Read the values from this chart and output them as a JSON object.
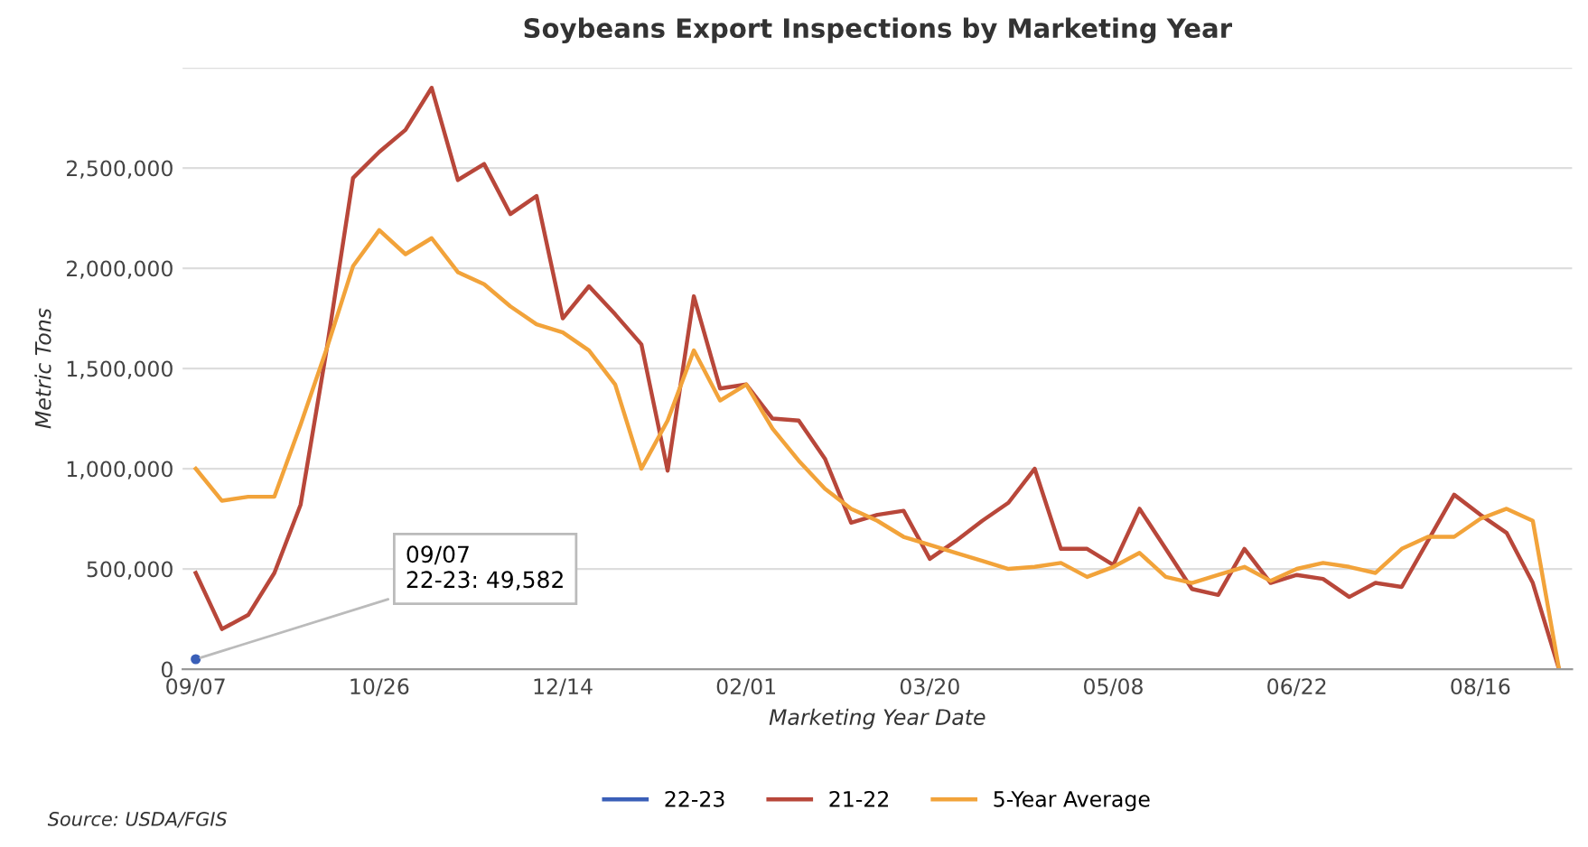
{
  "chart_data": {
    "type": "line",
    "title": "Soybeans Export Inspections by Marketing Year",
    "xlabel": "Marketing Year Date",
    "ylabel": "Metric Tons",
    "categories": [
      "09/07",
      null,
      null,
      null,
      null,
      null,
      null,
      "10/26",
      null,
      null,
      null,
      null,
      null,
      null,
      "12/14",
      null,
      null,
      null,
      null,
      null,
      null,
      "02/01",
      null,
      null,
      null,
      null,
      null,
      null,
      "03/20",
      null,
      null,
      null,
      null,
      null,
      null,
      "05/08",
      null,
      null,
      null,
      null,
      null,
      null,
      "06/22",
      null,
      null,
      null,
      null,
      null,
      null,
      "08/16",
      null,
      null,
      null
    ],
    "series": [
      {
        "name": "22-23",
        "color": "#3a5fb8",
        "marker": "circle",
        "values": [
          49582,
          null,
          null,
          null,
          null,
          null,
          null,
          null,
          null,
          null,
          null,
          null,
          null,
          null,
          null,
          null,
          null,
          null,
          null,
          null,
          null,
          null,
          null,
          null,
          null,
          null,
          null,
          null,
          null,
          null,
          null,
          null,
          null,
          null,
          null,
          null,
          null,
          null,
          null,
          null,
          null,
          null,
          null,
          null,
          null,
          null,
          null,
          null,
          null,
          null,
          null,
          null,
          null
        ]
      },
      {
        "name": "21-22",
        "color": "#b8473a",
        "values": [
          480000,
          200000,
          270000,
          480000,
          820000,
          1600000,
          2450000,
          2580000,
          2690000,
          2900000,
          2440000,
          2520000,
          2270000,
          2360000,
          1750000,
          1910000,
          1770000,
          1620000,
          990000,
          1860000,
          1400000,
          1420000,
          1250000,
          1240000,
          1050000,
          730000,
          770000,
          790000,
          550000,
          640000,
          740000,
          830000,
          1000000,
          600000,
          600000,
          520000,
          800000,
          600000,
          400000,
          370000,
          600000,
          430000,
          470000,
          450000,
          360000,
          430000,
          410000,
          640000,
          870000,
          770000,
          680000,
          430000,
          0
        ]
      },
      {
        "name": "5-Year Average",
        "color": "#f2a33a",
        "values": [
          1000000,
          840000,
          860000,
          860000,
          1220000,
          1600000,
          2010000,
          2190000,
          2070000,
          2150000,
          1980000,
          1920000,
          1810000,
          1720000,
          1680000,
          1590000,
          1420000,
          1000000,
          1240000,
          1590000,
          1340000,
          1420000,
          1200000,
          1040000,
          900000,
          800000,
          740000,
          660000,
          620000,
          580000,
          540000,
          500000,
          510000,
          530000,
          460000,
          510000,
          580000,
          460000,
          430000,
          470000,
          510000,
          440000,
          500000,
          530000,
          510000,
          480000,
          600000,
          660000,
          660000,
          750000,
          800000,
          740000,
          0
        ]
      }
    ],
    "ylim": [
      0,
      3000000
    ],
    "yticks": [
      {
        "value": 0,
        "label": "0"
      },
      {
        "value": 500000,
        "label": "500,000"
      },
      {
        "value": 1000000,
        "label": "1,000,000"
      },
      {
        "value": 1500000,
        "label": "1,500,000"
      },
      {
        "value": 2000000,
        "label": "2,000,000"
      },
      {
        "value": 2500000,
        "label": "2,500,000"
      },
      {
        "value": 3000000,
        "label": null
      }
    ],
    "grid": "y",
    "legend": "bottom",
    "marker": "none",
    "line_style": "solid",
    "annotations": [
      {
        "text": "09/07\n22-23: 49,582",
        "x": "09/07",
        "y": 49582
      },
      "Source: USDA/FGIS"
    ]
  }
}
